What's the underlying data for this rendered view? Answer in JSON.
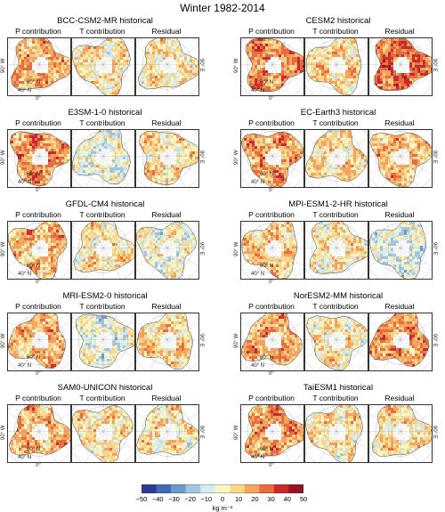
{
  "title": "Winter 1982-2014",
  "panel_labels": [
    "P contribution",
    "T contribution",
    "Residual"
  ],
  "map_labels": {
    "lon_left": "90° W",
    "lon_right": "90° E",
    "lon_bottom": "0°",
    "lat_1": "60° N",
    "lat_2": "40° N"
  },
  "models": [
    {
      "name": "BCC-CSM2-MR historical",
      "bias": [
        16,
        6,
        6
      ]
    },
    {
      "name": "CESM2 historical",
      "bias": [
        24,
        8,
        28
      ]
    },
    {
      "name": "E3SM-1-0 historical",
      "bias": [
        22,
        -4,
        8
      ]
    },
    {
      "name": "EC-Earth3 historical",
      "bias": [
        20,
        8,
        14
      ]
    },
    {
      "name": "GFDL-CM4 historical",
      "bias": [
        16,
        6,
        -2
      ]
    },
    {
      "name": "MPI-ESM1-2-HR historical",
      "bias": [
        10,
        4,
        -8
      ]
    },
    {
      "name": "MRI-ESM2-0 historical",
      "bias": [
        14,
        -4,
        8
      ]
    },
    {
      "name": "NorESM2-MM historical",
      "bias": [
        16,
        4,
        22
      ]
    },
    {
      "name": "SAM0-UNICON historical",
      "bias": [
        16,
        6,
        6
      ]
    },
    {
      "name": "TaiESM1 historical",
      "bias": [
        20,
        6,
        8
      ]
    }
  ],
  "colorbar": {
    "ticks": [
      "−50",
      "−40",
      "−30",
      "−20",
      "−10",
      "0",
      "10",
      "20",
      "30",
      "40",
      "50"
    ],
    "unit": "kg m⁻²",
    "colors": [
      "#2a3a97",
      "#3f6bb4",
      "#6b9bcb",
      "#a3c7e0",
      "#d6ebf2",
      "#f8f6c4",
      "#fcd78a",
      "#f8a45c",
      "#ea6b3c",
      "#c9292a",
      "#961226"
    ]
  }
}
